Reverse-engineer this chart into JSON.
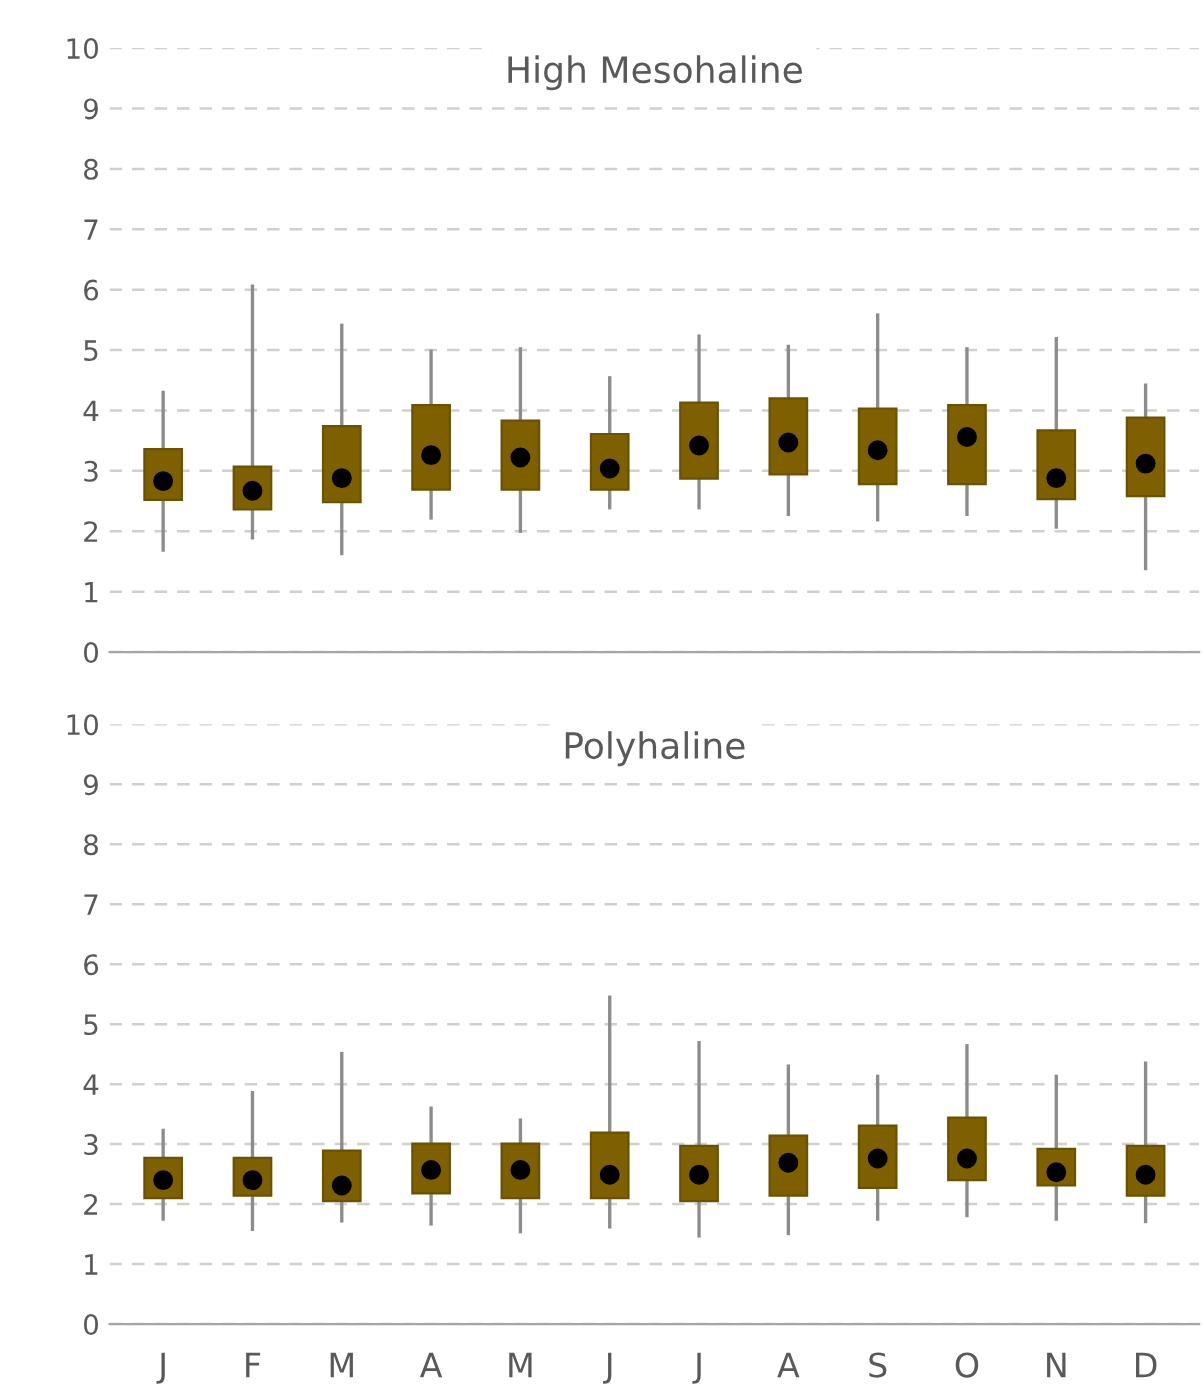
{
  "chart_data": [
    {
      "type": "box",
      "title": "High Mesohaline",
      "categories": [
        null,
        null,
        null,
        null,
        null,
        null,
        null,
        null,
        null,
        null,
        null,
        null
      ],
      "color": "#7f6000",
      "ylim": [
        0,
        10
      ],
      "yticks": [
        0,
        1,
        2,
        3,
        4,
        5,
        6,
        7,
        8,
        9,
        10
      ],
      "grid": "y",
      "tick_labels": "y",
      "marker": "circle",
      "boxes": [
        {
          "low": 1.69,
          "q1": 2.52,
          "median": 2.83,
          "q3": 3.36,
          "high": 4.3
        },
        {
          "low": 1.89,
          "q1": 2.36,
          "median": 2.67,
          "q3": 3.07,
          "high": 6.06
        },
        {
          "low": 1.63,
          "q1": 2.48,
          "median": 2.88,
          "q3": 3.74,
          "high": 5.41
        },
        {
          "low": 2.22,
          "q1": 2.69,
          "median": 3.26,
          "q3": 4.09,
          "high": 4.98
        },
        {
          "low": 2.0,
          "q1": 2.69,
          "median": 3.22,
          "q3": 3.83,
          "high": 5.02
        },
        {
          "low": 2.39,
          "q1": 2.69,
          "median": 3.04,
          "q3": 3.61,
          "high": 4.54
        },
        {
          "low": 2.39,
          "q1": 2.87,
          "median": 3.42,
          "q3": 4.13,
          "high": 5.23
        },
        {
          "low": 2.28,
          "q1": 2.94,
          "median": 3.47,
          "q3": 4.2,
          "high": 5.06
        },
        {
          "low": 2.19,
          "q1": 2.78,
          "median": 3.34,
          "q3": 4.03,
          "high": 5.58
        },
        {
          "low": 2.28,
          "q1": 2.78,
          "median": 3.56,
          "q3": 4.09,
          "high": 5.02
        },
        {
          "low": 2.07,
          "q1": 2.53,
          "median": 2.88,
          "q3": 3.67,
          "high": 5.19
        },
        {
          "low": 1.38,
          "q1": 2.58,
          "median": 3.12,
          "q3": 3.88,
          "high": 4.42
        }
      ]
    },
    {
      "type": "box",
      "title": "Polyhaline",
      "categories": [
        "J",
        "F",
        "M",
        "A",
        "M",
        "J",
        "J",
        "A",
        "S",
        "O",
        "N",
        "D"
      ],
      "color": "#7f6000",
      "ylim": [
        0,
        10
      ],
      "yticks": [
        0,
        1,
        2,
        3,
        4,
        5,
        6,
        7,
        8,
        9,
        10
      ],
      "grid": "y",
      "marker": "circle",
      "boxes": [
        {
          "low": 1.75,
          "q1": 2.1,
          "median": 2.4,
          "q3": 2.77,
          "high": 3.23
        },
        {
          "low": 1.58,
          "q1": 2.14,
          "median": 2.4,
          "q3": 2.77,
          "high": 3.86
        },
        {
          "low": 1.72,
          "q1": 2.05,
          "median": 2.31,
          "q3": 2.89,
          "high": 4.51
        },
        {
          "low": 1.67,
          "q1": 2.18,
          "median": 2.57,
          "q3": 3.01,
          "high": 3.6
        },
        {
          "low": 1.54,
          "q1": 2.1,
          "median": 2.57,
          "q3": 3.01,
          "high": 3.4
        },
        {
          "low": 1.62,
          "q1": 2.1,
          "median": 2.49,
          "q3": 3.19,
          "high": 5.45
        },
        {
          "low": 1.47,
          "q1": 2.05,
          "median": 2.49,
          "q3": 2.97,
          "high": 4.69
        },
        {
          "low": 1.51,
          "q1": 2.14,
          "median": 2.69,
          "q3": 3.14,
          "high": 4.3
        },
        {
          "low": 1.75,
          "q1": 2.27,
          "median": 2.76,
          "q3": 3.31,
          "high": 4.13
        },
        {
          "low": 1.81,
          "q1": 2.4,
          "median": 2.76,
          "q3": 3.44,
          "high": 4.64
        },
        {
          "low": 1.75,
          "q1": 2.31,
          "median": 2.53,
          "q3": 2.92,
          "high": 4.13
        },
        {
          "low": 1.71,
          "q1": 2.14,
          "median": 2.49,
          "q3": 2.97,
          "high": 4.35
        }
      ]
    }
  ]
}
